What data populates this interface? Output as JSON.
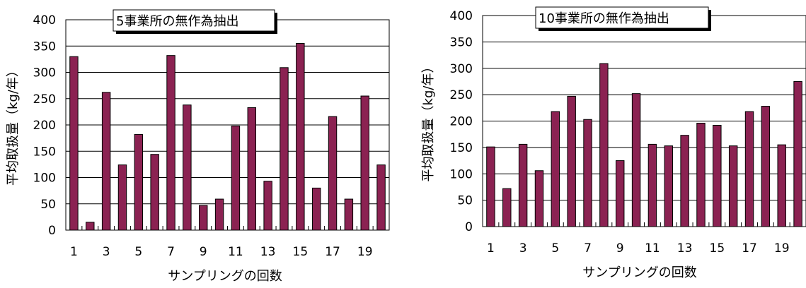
{
  "chart_data": [
    {
      "type": "bar",
      "title": "5事業所の無作為抽出",
      "xlabel": "サンプリングの回数",
      "ylabel": "平均取扱量（kg/年）",
      "ylim": [
        0,
        400
      ],
      "yticks": [
        0,
        50,
        100,
        150,
        200,
        250,
        300,
        350,
        400
      ],
      "categories": [
        1,
        2,
        3,
        4,
        5,
        6,
        7,
        8,
        9,
        10,
        11,
        12,
        13,
        14,
        15,
        16,
        17,
        18,
        19,
        20
      ],
      "x_tick_labels": [
        "1",
        "3",
        "5",
        "7",
        "9",
        "11",
        "13",
        "15",
        "17",
        "19"
      ],
      "values": [
        330,
        15,
        262,
        124,
        182,
        144,
        332,
        238,
        47,
        59,
        198,
        233,
        93,
        309,
        355,
        80,
        216,
        59,
        255,
        124
      ],
      "bar_color": "#8b2252",
      "grid": "horizontal"
    },
    {
      "type": "bar",
      "title": "10事業所の無作為抽出",
      "xlabel": "サンプリングの回数",
      "ylabel": "平均取扱量（kg/年）",
      "ylim": [
        0,
        400
      ],
      "yticks": [
        0,
        50,
        100,
        150,
        200,
        250,
        300,
        350,
        400
      ],
      "categories": [
        1,
        2,
        3,
        4,
        5,
        6,
        7,
        8,
        9,
        10,
        11,
        12,
        13,
        14,
        15,
        16,
        17,
        18,
        19,
        20
      ],
      "x_tick_labels": [
        "1",
        "3",
        "5",
        "7",
        "9",
        "11",
        "13",
        "15",
        "17",
        "19"
      ],
      "values": [
        151,
        72,
        156,
        106,
        218,
        247,
        203,
        309,
        125,
        252,
        156,
        153,
        173,
        196,
        192,
        153,
        218,
        228,
        155,
        275
      ],
      "bar_color": "#8b2252",
      "grid": "horizontal"
    }
  ]
}
